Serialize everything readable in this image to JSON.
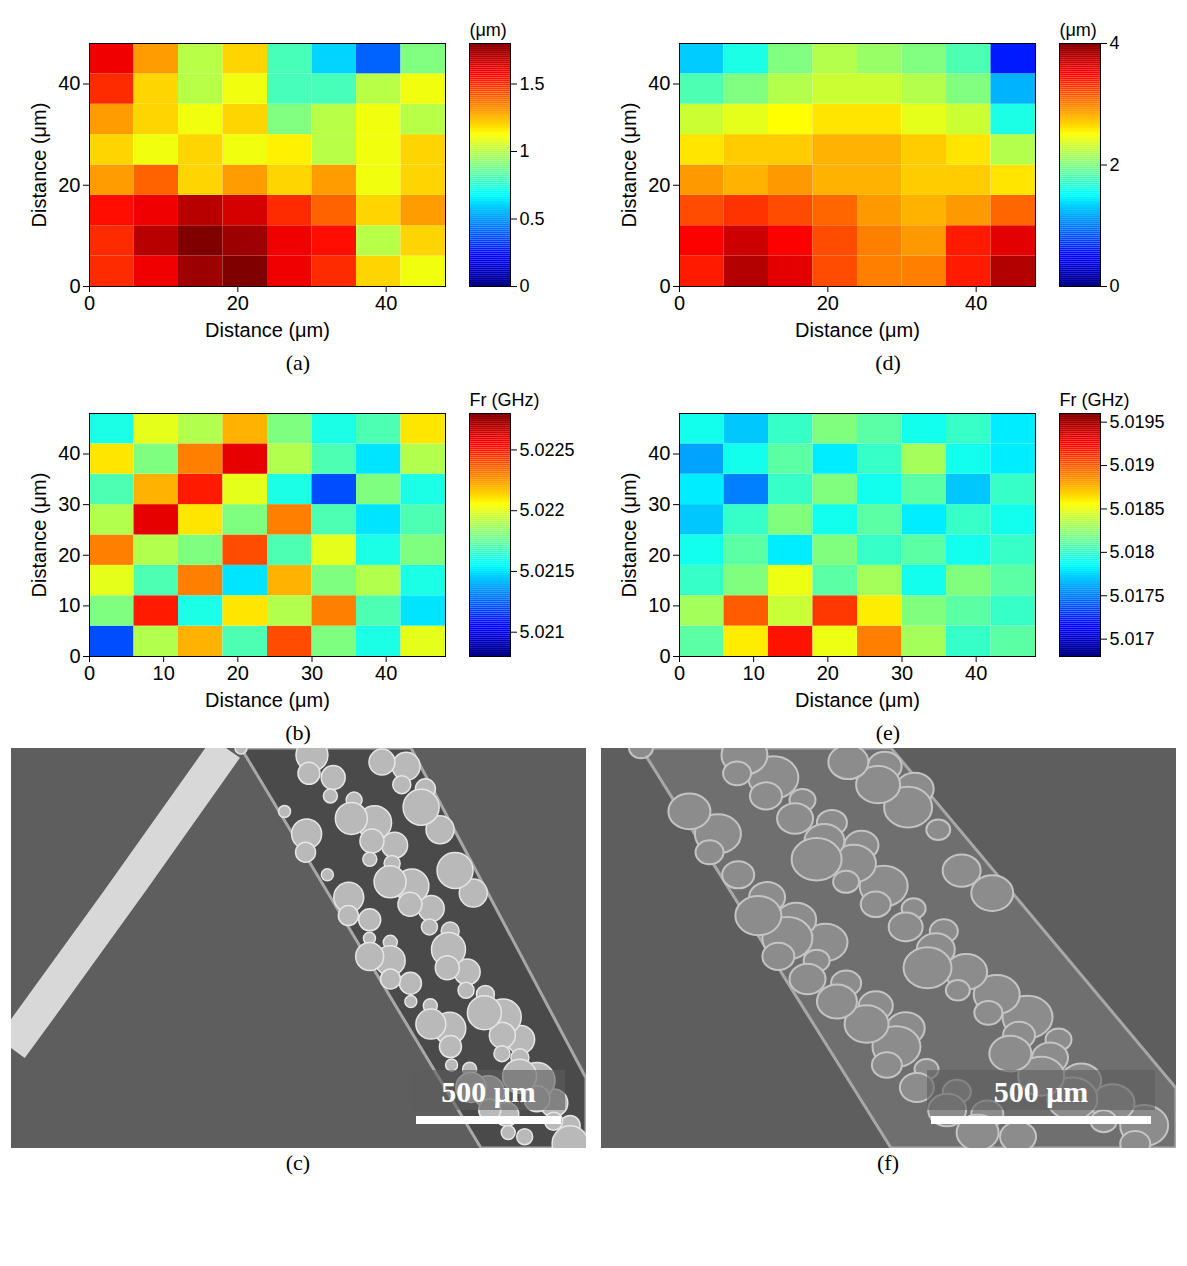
{
  "chart_data": [
    {
      "type": "heatmap",
      "panel": "(a)",
      "xlabel": "Distance (μm)",
      "ylabel": "Distance (μm)",
      "x": [
        3,
        9,
        15,
        21,
        27,
        33,
        39,
        45
      ],
      "y": [
        3,
        9,
        15,
        21,
        27,
        33,
        39,
        45
      ],
      "values": [
        [
          1.5,
          1.6,
          1.75,
          1.8,
          1.6,
          1.5,
          1.2,
          1.1
        ],
        [
          1.5,
          1.7,
          1.8,
          1.75,
          1.6,
          1.55,
          1.0,
          1.2
        ],
        [
          1.55,
          1.6,
          1.7,
          1.65,
          1.5,
          1.4,
          1.2,
          1.3
        ],
        [
          1.3,
          1.4,
          1.2,
          1.3,
          1.2,
          1.3,
          1.1,
          1.2
        ],
        [
          1.2,
          1.1,
          1.2,
          1.1,
          1.15,
          1.0,
          1.1,
          1.2
        ],
        [
          1.3,
          1.2,
          1.1,
          1.2,
          0.9,
          1.0,
          1.1,
          1.0
        ],
        [
          1.5,
          1.2,
          1.0,
          1.1,
          0.8,
          0.8,
          1.0,
          1.1
        ],
        [
          1.6,
          1.3,
          1.0,
          1.2,
          0.8,
          0.6,
          0.4,
          0.9
        ]
      ],
      "xlim": [
        0,
        48
      ],
      "ylim": [
        0,
        48
      ],
      "xticks": [
        0,
        20,
        40
      ],
      "yticks": [
        0,
        20,
        40
      ],
      "colorbar": {
        "label": "(μm)",
        "range": [
          0,
          1.8
        ],
        "ticks": [
          0,
          0.5,
          1,
          1.5
        ]
      }
    },
    {
      "type": "heatmap",
      "panel": "(d)",
      "xlabel": "Distance (μm)",
      "ylabel": "Distance (μm)",
      "x": [
        3,
        9,
        15,
        21,
        27,
        33,
        39,
        45
      ],
      "y": [
        3,
        9,
        15,
        21,
        27,
        33,
        39,
        45
      ],
      "values": [
        [
          3.4,
          3.8,
          3.6,
          3.2,
          3.0,
          3.0,
          3.4,
          3.8
        ],
        [
          3.5,
          3.7,
          3.5,
          3.2,
          3.0,
          2.9,
          3.4,
          3.6
        ],
        [
          3.2,
          3.3,
          3.2,
          3.1,
          2.9,
          2.8,
          2.9,
          3.1
        ],
        [
          2.9,
          2.8,
          2.9,
          2.8,
          2.8,
          2.7,
          2.7,
          2.6
        ],
        [
          2.6,
          2.7,
          2.7,
          2.8,
          2.8,
          2.7,
          2.6,
          2.2
        ],
        [
          2.3,
          2.4,
          2.5,
          2.6,
          2.6,
          2.4,
          2.3,
          1.6
        ],
        [
          1.8,
          2.0,
          2.2,
          2.3,
          2.3,
          2.2,
          2.0,
          1.2
        ],
        [
          1.3,
          1.6,
          2.0,
          2.2,
          2.1,
          2.0,
          1.8,
          0.6
        ]
      ],
      "xlim": [
        0,
        48
      ],
      "ylim": [
        0,
        48
      ],
      "xticks": [
        0,
        20,
        40
      ],
      "yticks": [
        0,
        20,
        40
      ],
      "colorbar": {
        "label": "(μm)",
        "range": [
          0,
          4
        ],
        "ticks": [
          0,
          2,
          4
        ]
      }
    },
    {
      "type": "heatmap",
      "panel": "(b)",
      "xlabel": "Distance (μm)",
      "ylabel": "Distance (μm)",
      "x": [
        3,
        9,
        15,
        21,
        27,
        33,
        39,
        45
      ],
      "y": [
        3,
        9,
        15,
        21,
        27,
        33,
        39,
        45
      ],
      "values": [
        [
          5.0212,
          5.0219,
          5.0222,
          5.0217,
          5.0224,
          5.0218,
          5.0216,
          5.022
        ],
        [
          5.0218,
          5.0225,
          5.0216,
          5.0221,
          5.0219,
          5.0223,
          5.0217,
          5.0215
        ],
        [
          5.022,
          5.0217,
          5.0223,
          5.0215,
          5.0222,
          5.0218,
          5.0219,
          5.0216
        ],
        [
          5.0223,
          5.0219,
          5.0218,
          5.0224,
          5.0217,
          5.022,
          5.0216,
          5.0218
        ],
        [
          5.0219,
          5.0226,
          5.0221,
          5.0218,
          5.0223,
          5.0217,
          5.0215,
          5.0217
        ],
        [
          5.0217,
          5.0222,
          5.0225,
          5.022,
          5.0216,
          5.0212,
          5.0218,
          5.0216
        ],
        [
          5.0221,
          5.0218,
          5.0223,
          5.0226,
          5.0219,
          5.0217,
          5.0215,
          5.0219
        ],
        [
          5.0216,
          5.022,
          5.0219,
          5.0222,
          5.0218,
          5.0216,
          5.0217,
          5.0221
        ]
      ],
      "xlim": [
        0,
        48
      ],
      "ylim": [
        0,
        48
      ],
      "xticks": [
        0,
        10,
        20,
        30,
        40
      ],
      "yticks": [
        0,
        10,
        20,
        30,
        40
      ],
      "colorbar": {
        "label": "Fr (GHz)",
        "range": [
          5.0208,
          5.0228
        ],
        "ticks": [
          5.021,
          5.0215,
          5.022,
          5.0225
        ]
      }
    },
    {
      "type": "heatmap",
      "panel": "(e)",
      "xlabel": "Distance (μm)",
      "ylabel": "Distance (μm)",
      "x": [
        3,
        9,
        15,
        21,
        27,
        33,
        39,
        45
      ],
      "y": [
        3,
        9,
        15,
        21,
        27,
        33,
        39,
        45
      ],
      "values": [
        [
          5.0181,
          5.0186,
          5.0192,
          5.0185,
          5.0189,
          5.0183,
          5.018,
          5.0181
        ],
        [
          5.0183,
          5.019,
          5.0184,
          5.0191,
          5.0186,
          5.0182,
          5.0181,
          5.018
        ],
        [
          5.018,
          5.0182,
          5.0185,
          5.0181,
          5.0183,
          5.0179,
          5.0182,
          5.0181
        ],
        [
          5.0179,
          5.0181,
          5.0178,
          5.0182,
          5.018,
          5.0181,
          5.0179,
          5.018
        ],
        [
          5.0177,
          5.018,
          5.0182,
          5.0179,
          5.0181,
          5.0178,
          5.018,
          5.0179
        ],
        [
          5.0178,
          5.0175,
          5.018,
          5.0182,
          5.0179,
          5.0181,
          5.0177,
          5.018
        ],
        [
          5.0176,
          5.0179,
          5.0181,
          5.0178,
          5.018,
          5.0183,
          5.0179,
          5.0178
        ],
        [
          5.0179,
          5.0177,
          5.018,
          5.0182,
          5.0181,
          5.0179,
          5.018,
          5.0178
        ]
      ],
      "xlim": [
        0,
        48
      ],
      "ylim": [
        0,
        48
      ],
      "xticks": [
        0,
        10,
        20,
        30,
        40
      ],
      "yticks": [
        0,
        10,
        20,
        30,
        40
      ],
      "colorbar": {
        "label": "Fr (GHz)",
        "range": [
          5.0168,
          5.0196
        ],
        "ticks": [
          5.017,
          5.0175,
          5.018,
          5.0185,
          5.019,
          5.0195
        ]
      }
    },
    {
      "type": "image",
      "panel": "(c)",
      "scale_bar": "500 μm"
    },
    {
      "type": "image",
      "panel": "(f)",
      "scale_bar": "500 μm"
    }
  ]
}
